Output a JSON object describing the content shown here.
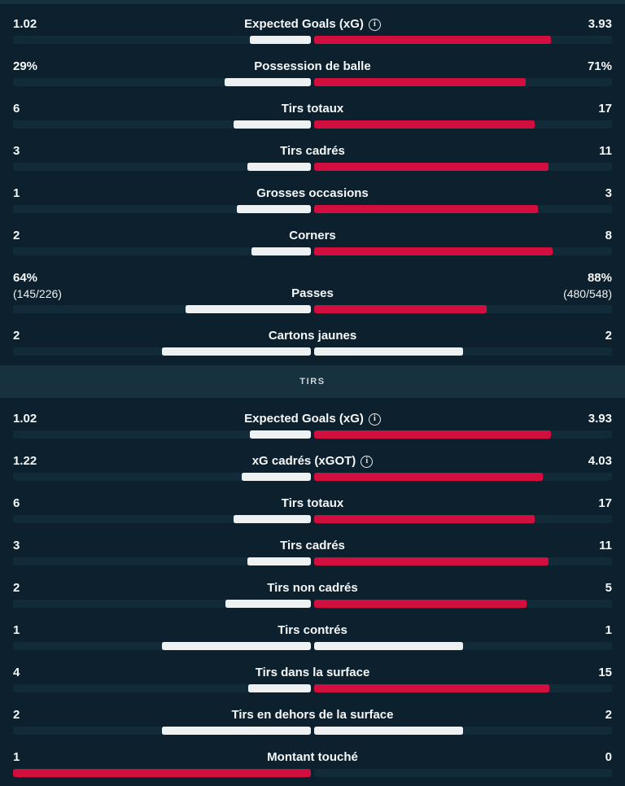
{
  "colors": {
    "background": "#0d202d",
    "band_background": "#17313f",
    "bar_track": "#122b39",
    "bar_neutral_white": "#eef1f2",
    "bar_highlight_red": "#d20e3e",
    "text": "#f5f8f9",
    "band_text": "#ccd6db"
  },
  "icons": {
    "info_icon_glyph": "i"
  },
  "sections": [
    {
      "header": null,
      "rows": [
        {
          "label": "Expected Goals (xG)",
          "info": true,
          "home": "1.02",
          "away": "3.93",
          "home_num": 1.02,
          "away_num": 3.93
        },
        {
          "label": "Possession de balle",
          "info": false,
          "home": "29%",
          "away": "71%",
          "home_num": 29,
          "away_num": 71
        },
        {
          "label": "Tirs totaux",
          "info": false,
          "home": "6",
          "away": "17",
          "home_num": 6,
          "away_num": 17
        },
        {
          "label": "Tirs cadrés",
          "info": false,
          "home": "3",
          "away": "11",
          "home_num": 3,
          "away_num": 11
        },
        {
          "label": "Grosses occasions",
          "info": false,
          "home": "1",
          "away": "3",
          "home_num": 1,
          "away_num": 3
        },
        {
          "label": "Corners",
          "info": false,
          "home": "2",
          "away": "8",
          "home_num": 2,
          "away_num": 8
        },
        {
          "label": "Passes",
          "info": false,
          "home": "64%",
          "away": "88%",
          "home_sub": "(145/226)",
          "away_sub": "(480/548)",
          "home_num": 64,
          "away_num": 88
        },
        {
          "label": "Cartons jaunes",
          "info": false,
          "home": "2",
          "away": "2",
          "home_num": 2,
          "away_num": 2
        }
      ]
    },
    {
      "header": "TIRS",
      "rows": [
        {
          "label": "Expected Goals (xG)",
          "info": true,
          "home": "1.02",
          "away": "3.93",
          "home_num": 1.02,
          "away_num": 3.93
        },
        {
          "label": "xG cadrés (xGOT)",
          "info": true,
          "home": "1.22",
          "away": "4.03",
          "home_num": 1.22,
          "away_num": 4.03
        },
        {
          "label": "Tirs totaux",
          "info": false,
          "home": "6",
          "away": "17",
          "home_num": 6,
          "away_num": 17
        },
        {
          "label": "Tirs cadrés",
          "info": false,
          "home": "3",
          "away": "11",
          "home_num": 3,
          "away_num": 11
        },
        {
          "label": "Tirs non cadrés",
          "info": false,
          "home": "2",
          "away": "5",
          "home_num": 2,
          "away_num": 5
        },
        {
          "label": "Tirs contrés",
          "info": false,
          "home": "1",
          "away": "1",
          "home_num": 1,
          "away_num": 1
        },
        {
          "label": "Tirs dans la surface",
          "info": false,
          "home": "4",
          "away": "15",
          "home_num": 4,
          "away_num": 15
        },
        {
          "label": "Tirs en dehors de la surface",
          "info": false,
          "home": "2",
          "away": "2",
          "home_num": 2,
          "away_num": 2
        },
        {
          "label": "Montant touché",
          "info": false,
          "home": "1",
          "away": "0",
          "home_num": 1,
          "away_num": 0
        }
      ]
    }
  ]
}
